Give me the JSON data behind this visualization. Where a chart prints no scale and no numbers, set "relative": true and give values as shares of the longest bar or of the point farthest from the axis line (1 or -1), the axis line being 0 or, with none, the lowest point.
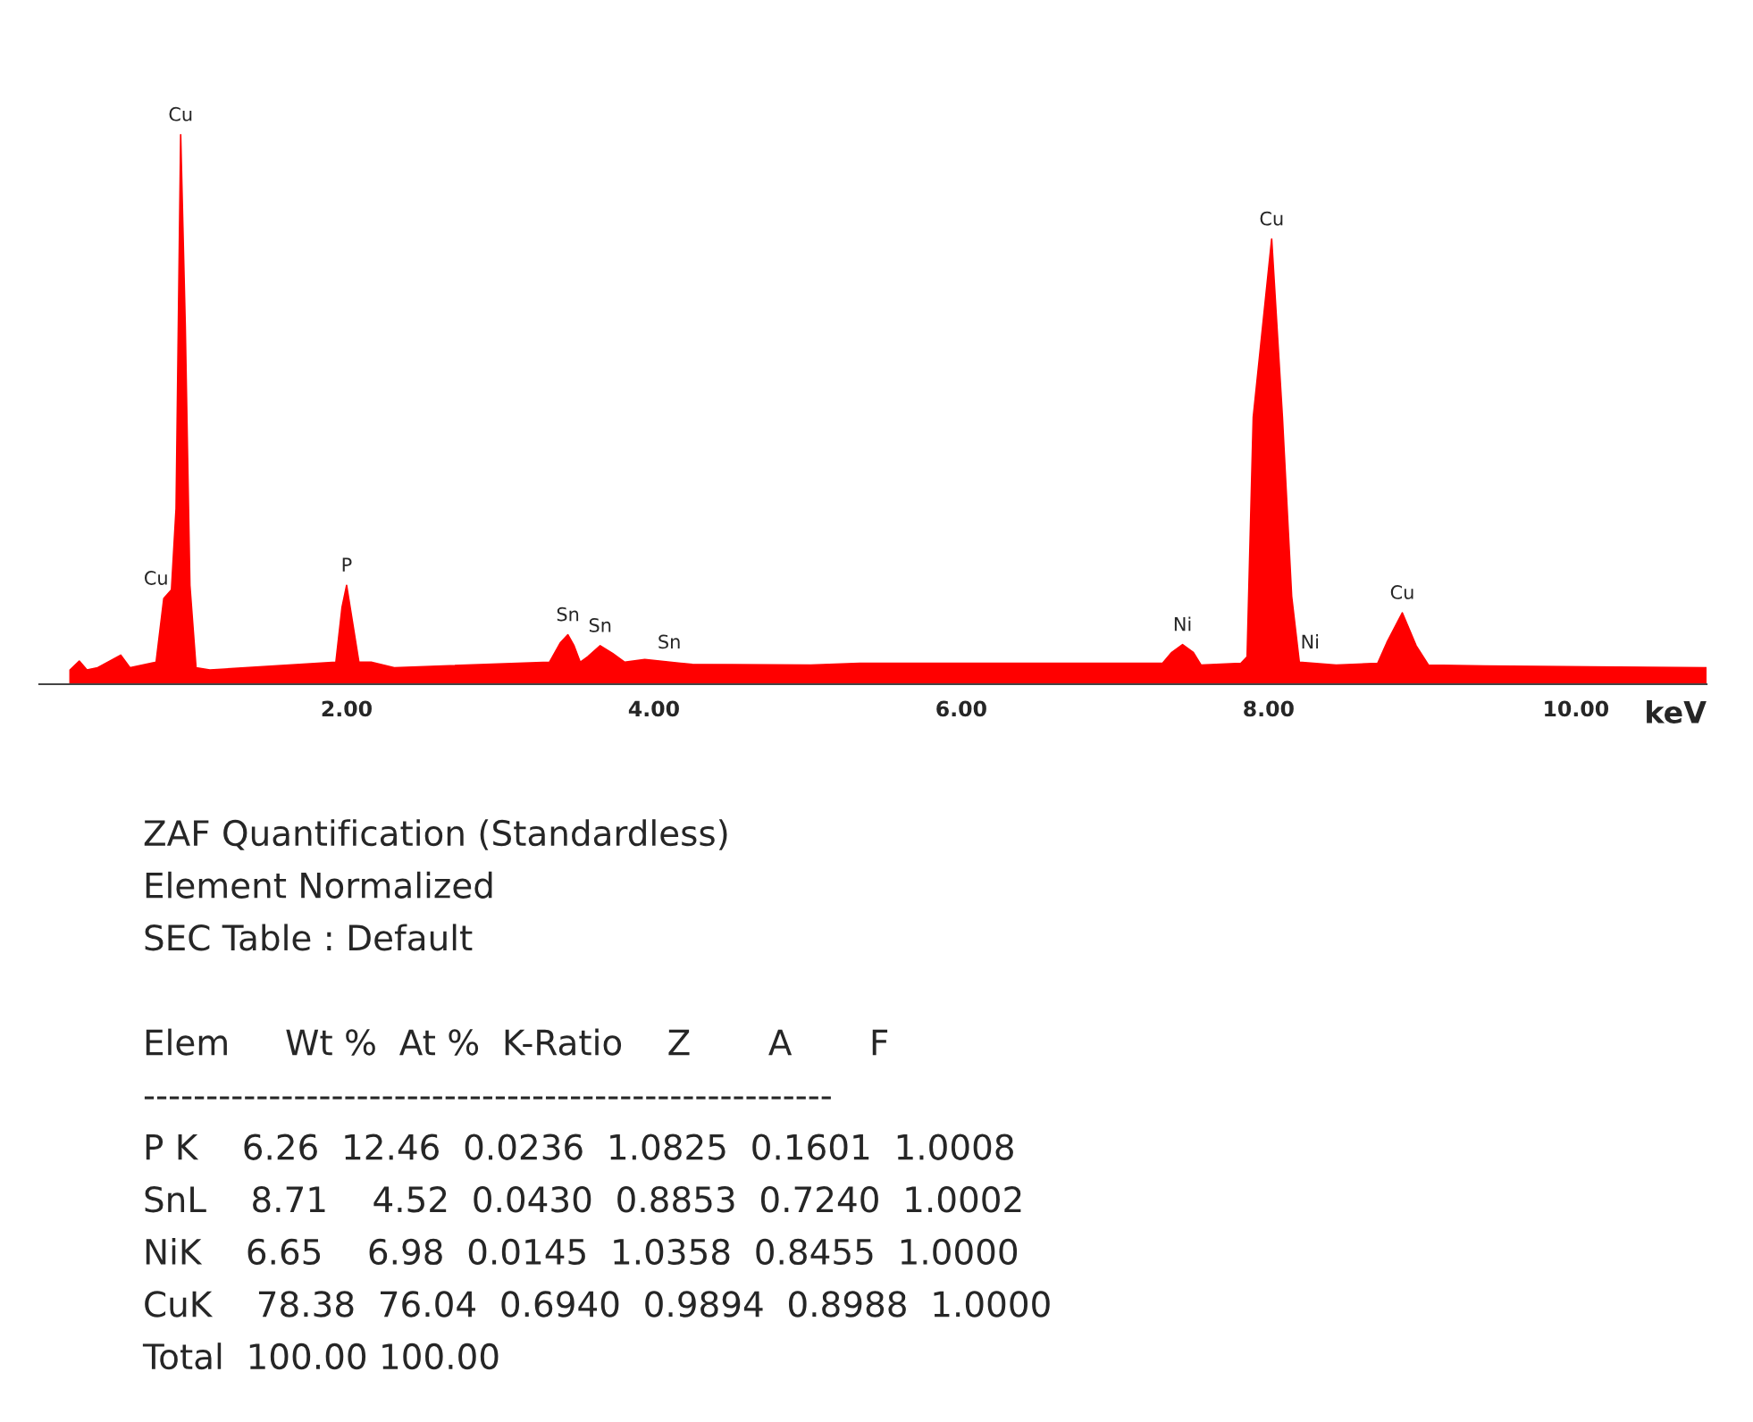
{
  "chart_data": {
    "type": "area",
    "relative": true,
    "xlabel": "keV",
    "grid": false,
    "xlim": [
      0,
      10.85
    ],
    "xticks": [
      {
        "value": 2,
        "label": "2.00"
      },
      {
        "value": 4,
        "label": "4.00"
      },
      {
        "value": 6,
        "label": "6.00"
      },
      {
        "value": 8,
        "label": "8.00"
      },
      {
        "value": 10,
        "label": "10.00"
      }
    ],
    "series": [
      {
        "color": "#ff0000",
        "x": [
          0.2,
          0.26,
          0.31,
          0.38,
          0.53,
          0.59,
          0.76,
          0.81,
          0.86,
          0.89,
          0.92,
          0.95,
          0.98,
          1.02,
          1.11,
          1.93,
          1.97,
          2.0,
          2.04,
          2.08,
          2.16,
          2.31,
          3.32,
          3.39,
          3.44,
          3.48,
          3.52,
          3.57,
          3.65,
          3.73,
          3.81,
          3.94,
          4.25,
          5.02,
          5.34,
          6.5,
          7.31,
          7.37,
          7.44,
          7.51,
          7.56,
          7.82,
          7.86,
          7.9,
          8.02,
          8.09,
          8.15,
          8.2,
          8.44,
          8.71,
          8.77,
          8.87,
          8.96,
          9.04,
          9.41,
          10.85
        ],
        "values": [
          0.026,
          0.042,
          0.026,
          0.03,
          0.053,
          0.03,
          0.04,
          0.156,
          0.172,
          0.32,
          1.0,
          0.65,
          0.18,
          0.03,
          0.026,
          0.04,
          0.14,
          0.18,
          0.11,
          0.04,
          0.04,
          0.03,
          0.04,
          0.075,
          0.09,
          0.07,
          0.04,
          0.05,
          0.07,
          0.056,
          0.04,
          0.045,
          0.036,
          0.035,
          0.038,
          0.038,
          0.038,
          0.058,
          0.072,
          0.058,
          0.035,
          0.038,
          0.05,
          0.486,
          0.81,
          0.486,
          0.16,
          0.04,
          0.035,
          0.038,
          0.076,
          0.13,
          0.07,
          0.035,
          0.033,
          0.03
        ]
      }
    ],
    "annotations": [
      {
        "text": "Cu",
        "x": 0.92,
        "y": 1.0
      },
      {
        "text": "Cu",
        "x": 0.76,
        "y": 0.156
      },
      {
        "text": "P",
        "x": 2.0,
        "y": 0.18
      },
      {
        "text": "Sn",
        "x": 3.44,
        "y": 0.09
      },
      {
        "text": "Sn",
        "x": 3.65,
        "y": 0.07
      },
      {
        "text": "Sn",
        "x": 4.1,
        "y": 0.04
      },
      {
        "text": "Ni",
        "x": 7.44,
        "y": 0.072
      },
      {
        "text": "Ni",
        "x": 8.27,
        "y": 0.04
      },
      {
        "text": "Cu",
        "x": 8.02,
        "y": 0.81
      },
      {
        "text": "Cu",
        "x": 8.87,
        "y": 0.13
      },
      "ZAF Quantification (Standardless)",
      "Element Normalized",
      "SEC Table : Default",
      "Elem     Wt %  At %  K-Ratio    Z       A       F",
      "-------------------------------------------------------",
      "P K    6.26  12.46  0.0236  1.0825  0.1601  1.0008",
      "SnL    8.71    4.52  0.0430  0.8853  0.7240  1.0002",
      "NiK    6.65    6.98  0.0145  1.0358  0.8455  1.0000",
      "CuK    78.38  76.04  0.6940  0.9894  0.8988  1.0000",
      "Total  100.00 100.00"
    ]
  }
}
